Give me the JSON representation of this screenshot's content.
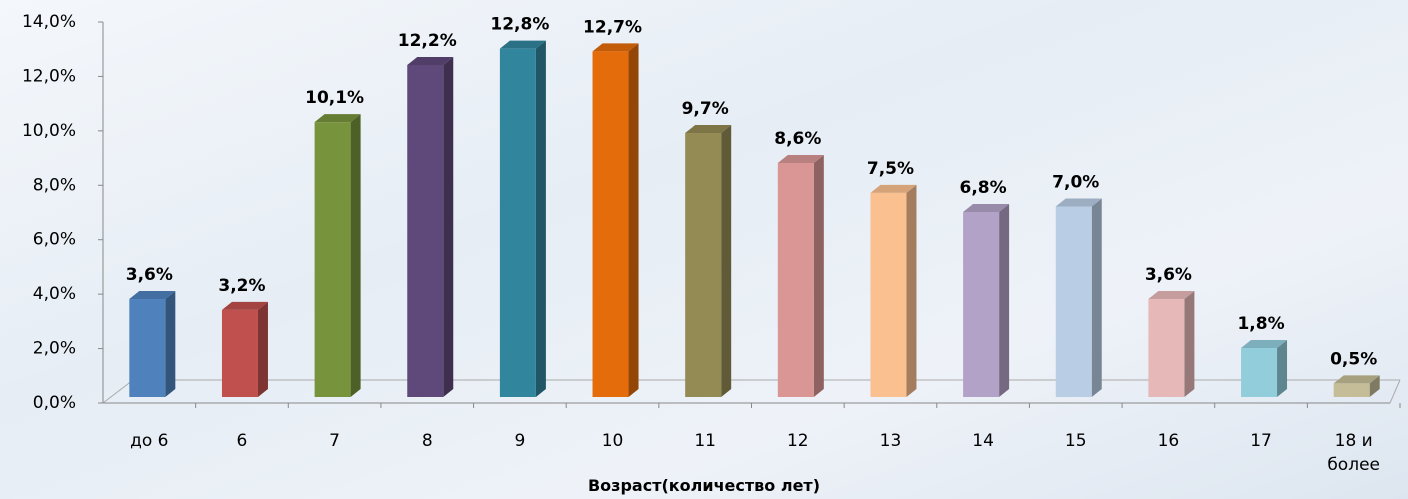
{
  "chart_data": {
    "type": "bar",
    "x_label": "Возраст(количество лет)",
    "categories": [
      "до 6",
      "6",
      "7",
      "8",
      "9",
      "10",
      "11",
      "12",
      "13",
      "14",
      "15",
      "16",
      "17",
      "18 и более"
    ],
    "values": [
      3.6,
      3.2,
      10.1,
      12.2,
      12.8,
      12.7,
      9.7,
      8.6,
      7.5,
      6.8,
      7.0,
      3.6,
      1.8,
      0.5
    ],
    "value_labels": [
      "3,6%",
      "3,2%",
      "10,1%",
      "12,2%",
      "12,8%",
      "12,7%",
      "9,7%",
      "8,6%",
      "7,5%",
      "6,8%",
      "7,0%",
      "3,6%",
      "1,8%",
      "0,5%"
    ],
    "colors": [
      "#4f81bd",
      "#c0504d",
      "#77933c",
      "#5f497a",
      "#31859c",
      "#e46c0a",
      "#948a54",
      "#d99694",
      "#fac08f",
      "#b3a2c7",
      "#b9cde5",
      "#e6b9b8",
      "#92cddc",
      "#c4bd97"
    ],
    "ylim": [
      0,
      14
    ],
    "yticks": [
      {
        "value": 0,
        "label": "0,0%"
      },
      {
        "value": 2,
        "label": "2,0%"
      },
      {
        "value": 4,
        "label": "4,0%"
      },
      {
        "value": 6,
        "label": "6,0%"
      },
      {
        "value": 8,
        "label": "8,0%"
      },
      {
        "value": 10,
        "label": "10,0%"
      },
      {
        "value": 12,
        "label": "12,0%"
      },
      {
        "value": 14,
        "label": "14,0%"
      }
    ]
  }
}
